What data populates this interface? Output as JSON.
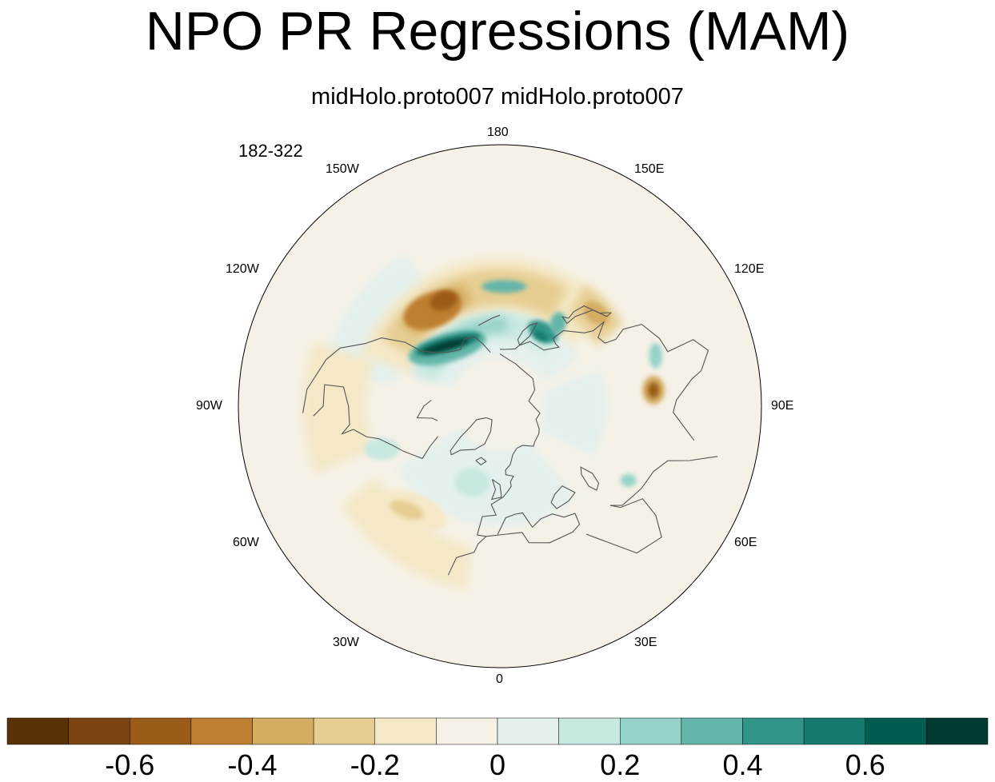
{
  "title": "NPO PR Regressions (MAM)",
  "subtitle": "midHolo.proto007  midHolo.proto007",
  "years_label": "182-322",
  "longitude_labels": [
    "180",
    "150E",
    "120E",
    "90E",
    "60E",
    "30E",
    "0",
    "30W",
    "60W",
    "90W",
    "120W",
    "150W"
  ],
  "projection": "north polar stereographic",
  "colorbar": {
    "colors": [
      "#5a3006",
      "#7b4410",
      "#9c5c19",
      "#bf7f31",
      "#d4ac62",
      "#e6cd92",
      "#f4e8c6",
      "#f5f1e6",
      "#e3f0ee",
      "#c8e8e2",
      "#95d3c9",
      "#63b6a9",
      "#32958a",
      "#147a6e",
      "#035c50",
      "#003a30"
    ],
    "tick_labels": [
      "-0.6",
      "-0.4",
      "-0.2",
      "0",
      "0.2",
      "0.4",
      "0.6"
    ],
    "tick_values": [
      -0.6,
      -0.4,
      -0.2,
      0,
      0.2,
      0.4,
      0.6
    ],
    "min": -0.8,
    "max": 0.8,
    "step": 0.1
  },
  "chart_data": {
    "type": "heatmap",
    "title": "NPO PR Regressions (MAM)",
    "subtitle": "midHolo.proto007  midHolo.proto007",
    "variable": "precipitation regression",
    "levels": [
      -0.7,
      -0.6,
      -0.5,
      -0.4,
      -0.3,
      -0.2,
      -0.1,
      0,
      0.1,
      0.2,
      0.3,
      0.4,
      0.5,
      0.6,
      0.7
    ],
    "features": [
      {
        "name": "north Pacific negative band",
        "lon_range": [
          150,
          240
        ],
        "lat_range": [
          35,
          48
        ],
        "value": -0.3
      },
      {
        "name": "Gulf of Alaska negative max",
        "lon": 215,
        "lat": 42,
        "value": -0.5
      },
      {
        "name": "subpolar Pacific positive band",
        "lon_range": [
          140,
          240
        ],
        "lat_range": [
          52,
          62
        ],
        "value": 0.2
      },
      {
        "name": "Alaska coast positive max",
        "lon": 222,
        "lat": 57,
        "value": 0.7
      },
      {
        "name": "Kamchatka positive max",
        "lon": 150,
        "lat": 52,
        "value": 0.5
      },
      {
        "name": "Japan negative",
        "lon": 132,
        "lat": 37,
        "value": -0.3
      },
      {
        "name": "south China negative spot",
        "lon": 96,
        "lat": 28,
        "value": -0.6
      },
      {
        "name": "north Atlantic negative",
        "lon": 322,
        "lat": 35,
        "value": -0.25
      }
    ]
  }
}
